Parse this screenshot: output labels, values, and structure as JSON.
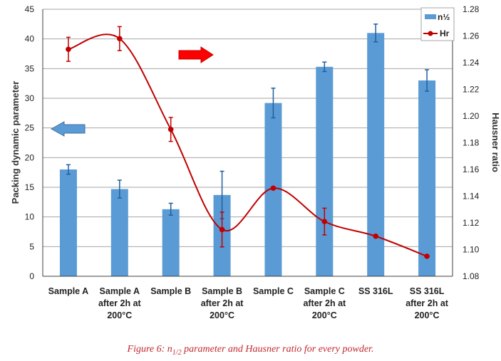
{
  "chart_data": {
    "type": "bar+line",
    "categories": [
      [
        "Sample A"
      ],
      [
        "Sample A",
        "after 2h at",
        "200°C"
      ],
      [
        "Sample B"
      ],
      [
        "Sample B",
        "after 2h at",
        "200°C"
      ],
      [
        "Sample C"
      ],
      [
        "Sample C",
        "after 2h at",
        "200°C"
      ],
      [
        "SS 316L"
      ],
      [
        "SS 316L",
        "after 2h at",
        "200°C"
      ]
    ],
    "series": [
      {
        "name": "n½",
        "kind": "bar",
        "axis": "left",
        "values": [
          18.0,
          14.7,
          11.3,
          13.7,
          29.2,
          35.3,
          41.0,
          33.0
        ],
        "err_low": [
          0.8,
          1.5,
          1.0,
          4.0,
          2.5,
          0.8,
          1.5,
          1.8
        ],
        "err_high": [
          0.8,
          1.5,
          1.0,
          4.0,
          2.5,
          0.8,
          1.5,
          1.8
        ],
        "color": "#5b9bd5"
      },
      {
        "name": "Hr",
        "kind": "line",
        "axis": "right",
        "smooth": true,
        "values": [
          1.25,
          1.258,
          1.19,
          1.115,
          1.146,
          1.121,
          1.11,
          1.095
        ],
        "err_low": [
          0.009,
          0.009,
          0.009,
          0.013,
          null,
          0.01,
          null,
          null
        ],
        "err_high": [
          0.009,
          0.009,
          0.009,
          0.013,
          null,
          0.01,
          null,
          null
        ],
        "color": "#c00000"
      }
    ],
    "left_axis": {
      "label": "Packing dynamic parameter",
      "min": 0,
      "max": 45,
      "step": 5,
      "ticks": [
        "0",
        "5",
        "10",
        "15",
        "20",
        "25",
        "30",
        "35",
        "40",
        "45"
      ]
    },
    "right_axis": {
      "label": "Hausner ratio",
      "min": 1.08,
      "max": 1.28,
      "step": 0.02,
      "ticks": [
        "1.08",
        "1.10",
        "1.12",
        "1.14",
        "1.16",
        "1.18",
        "1.20",
        "1.22",
        "1.24",
        "1.26",
        "1.28"
      ]
    },
    "grid": "horizontal",
    "legend": {
      "position": "top-right",
      "entries": [
        "n½",
        "Hr"
      ]
    },
    "annotations": [
      {
        "type": "arrow",
        "direction": "left",
        "color": "#5b9bd5",
        "meaning": "left axis"
      },
      {
        "type": "arrow",
        "direction": "right",
        "color": "#ff0000",
        "meaning": "right axis"
      }
    ]
  },
  "caption": "Figure 6: n1/2 parameter and Hausner ratio for every powder.",
  "caption_parts": {
    "prefix": "Figure 6: n",
    "subscript": "1/2",
    "suffix": " parameter and Hausner ratio for every powder."
  }
}
